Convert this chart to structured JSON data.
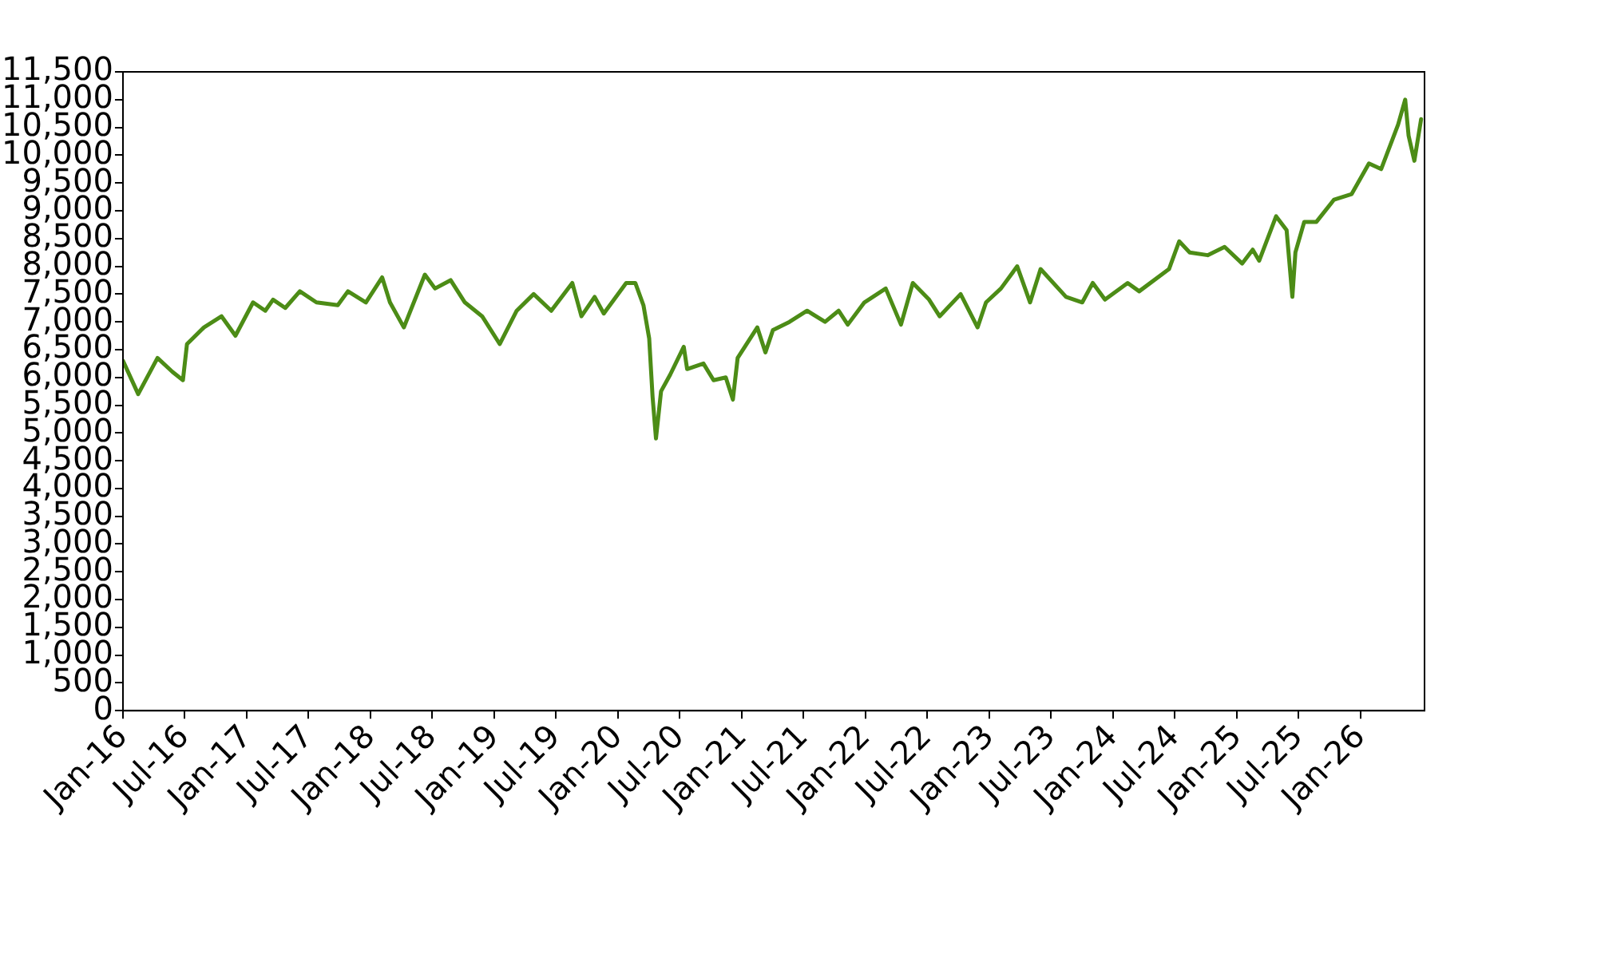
{
  "chart_data": {
    "type": "line",
    "marker": "none",
    "grid": false,
    "legend": false,
    "xlim": [
      "2016-01-01",
      "2026-07-08"
    ],
    "xticks": [
      {
        "value": "2016-01-01",
        "label": "Jan-16"
      },
      {
        "value": "2016-07-01",
        "label": "Jul-16"
      },
      {
        "value": "2017-01-01",
        "label": "Jan-17"
      },
      {
        "value": "2017-07-01",
        "label": "Jul-17"
      },
      {
        "value": "2018-01-01",
        "label": "Jan-18"
      },
      {
        "value": "2018-07-01",
        "label": "Jul-18"
      },
      {
        "value": "2019-01-01",
        "label": "Jan-19"
      },
      {
        "value": "2019-07-01",
        "label": "Jul-19"
      },
      {
        "value": "2020-01-01",
        "label": "Jan-20"
      },
      {
        "value": "2020-07-01",
        "label": "Jul-20"
      },
      {
        "value": "2021-01-01",
        "label": "Jan-21"
      },
      {
        "value": "2021-07-01",
        "label": "Jul-21"
      },
      {
        "value": "2022-01-01",
        "label": "Jan-22"
      },
      {
        "value": "2022-07-01",
        "label": "Jul-22"
      },
      {
        "value": "2023-01-01",
        "label": "Jan-23"
      },
      {
        "value": "2023-07-01",
        "label": "Jul-23"
      },
      {
        "value": "2024-01-01",
        "label": "Jan-24"
      },
      {
        "value": "2024-07-01",
        "label": "Jul-24"
      },
      {
        "value": "2025-01-01",
        "label": "Jan-25"
      },
      {
        "value": "2025-07-01",
        "label": "Jul-25"
      },
      {
        "value": "2026-01-01",
        "label": "Jan-26"
      }
    ],
    "ylim": [
      0,
      11500
    ],
    "yticks": [
      0,
      500,
      {
        "value": 1000,
        "label": "1,000"
      },
      {
        "value": 1500,
        "label": "1,500"
      },
      {
        "value": 2000,
        "label": "2,000"
      },
      {
        "value": 2500,
        "label": "2,500"
      },
      {
        "value": 3000,
        "label": "3,000"
      },
      {
        "value": 3500,
        "label": "3,500"
      },
      {
        "value": 4000,
        "label": "4,000"
      },
      {
        "value": 4500,
        "label": "4,500"
      },
      {
        "value": 5000,
        "label": "5,000"
      },
      {
        "value": 5500,
        "label": "5,500"
      },
      {
        "value": 6000,
        "label": "6,000"
      },
      {
        "value": 6500,
        "label": "6,500"
      },
      {
        "value": 7000,
        "label": "7,000"
      },
      {
        "value": 7500,
        "label": "7,500"
      },
      {
        "value": 8000,
        "label": "8,000"
      },
      {
        "value": 8500,
        "label": "8,500"
      },
      {
        "value": 9000,
        "label": "9,000"
      },
      {
        "value": 9500,
        "label": "9,500"
      },
      {
        "value": 10000,
        "label": "10,000"
      },
      {
        "value": 10500,
        "label": "10,500"
      },
      {
        "value": 11000,
        "label": "11,000"
      },
      {
        "value": 11500,
        "label": "11,500"
      }
    ],
    "series": [
      {
        "color": "#4c8c16",
        "x": [
          "2016-01-01",
          "2016-02-15",
          "2016-04-12",
          "2016-05-26",
          "2016-06-26",
          "2016-07-08",
          "2016-08-27",
          "2016-10-18",
          "2016-11-28",
          "2017-01-19",
          "2017-02-24",
          "2017-03-19",
          "2017-04-24",
          "2017-06-06",
          "2017-07-25",
          "2017-09-26",
          "2017-10-26",
          "2017-12-18",
          "2018-02-04",
          "2018-02-27",
          "2018-04-09",
          "2018-06-10",
          "2018-07-10",
          "2018-08-25",
          "2018-10-06",
          "2018-11-26",
          "2019-01-17",
          "2019-03-08",
          "2019-04-27",
          "2019-06-18",
          "2019-08-19",
          "2019-09-15",
          "2019-10-24",
          "2019-11-20",
          "2020-01-25",
          "2020-02-21",
          "2020-03-16",
          "2020-04-02",
          "2020-04-12",
          "2020-04-22",
          "2020-05-07",
          "2020-06-03",
          "2020-07-13",
          "2020-07-23",
          "2020-09-09",
          "2020-10-09",
          "2020-11-14",
          "2020-12-05",
          "2020-12-19",
          "2021-02-15",
          "2021-03-11",
          "2021-04-02",
          "2021-05-21",
          "2021-07-12",
          "2021-09-03",
          "2021-10-13",
          "2021-11-09",
          "2021-12-28",
          "2022-03-01",
          "2022-04-15",
          "2022-05-20",
          "2022-07-07",
          "2022-08-07",
          "2022-10-08",
          "2022-11-27",
          "2022-12-22",
          "2023-02-04",
          "2023-03-24",
          "2023-05-01",
          "2023-06-01",
          "2023-08-15",
          "2023-10-02",
          "2023-11-02",
          "2023-12-08",
          "2024-02-13",
          "2024-03-18",
          "2024-06-14",
          "2024-07-14",
          "2024-08-14",
          "2024-10-06",
          "2024-11-25",
          "2025-01-16",
          "2025-02-16",
          "2025-03-07",
          "2025-04-26",
          "2025-05-27",
          "2025-06-13",
          "2025-06-22",
          "2025-07-18",
          "2025-08-23",
          "2025-10-14",
          "2025-12-05",
          "2026-01-25",
          "2026-03-02",
          "2026-04-21",
          "2026-05-12",
          "2026-05-22",
          "2026-06-08",
          "2026-06-28"
        ],
        "values": [
          6300,
          5700,
          6350,
          6100,
          5950,
          6600,
          6900,
          7100,
          6750,
          7350,
          7200,
          7400,
          7250,
          7550,
          7350,
          7300,
          7550,
          7350,
          7800,
          7350,
          6900,
          7850,
          7600,
          7750,
          7350,
          7100,
          6600,
          7200,
          7500,
          7200,
          7700,
          7100,
          7450,
          7150,
          7700,
          7700,
          7300,
          6700,
          5650,
          4900,
          5750,
          6050,
          6550,
          6150,
          6250,
          5950,
          6000,
          5600,
          6350,
          6900,
          6450,
          6850,
          7000,
          7200,
          7000,
          7200,
          6950,
          7350,
          7600,
          6950,
          7700,
          7400,
          7100,
          7500,
          6900,
          7350,
          7600,
          8000,
          7350,
          7950,
          7450,
          7350,
          7700,
          7400,
          7700,
          7550,
          7950,
          8450,
          8250,
          8200,
          8350,
          8050,
          8300,
          8100,
          8900,
          8650,
          7450,
          8250,
          8800,
          8800,
          9200,
          9300,
          9850,
          9750,
          10550,
          11000,
          10350,
          9900,
          10650
        ]
      }
    ]
  }
}
